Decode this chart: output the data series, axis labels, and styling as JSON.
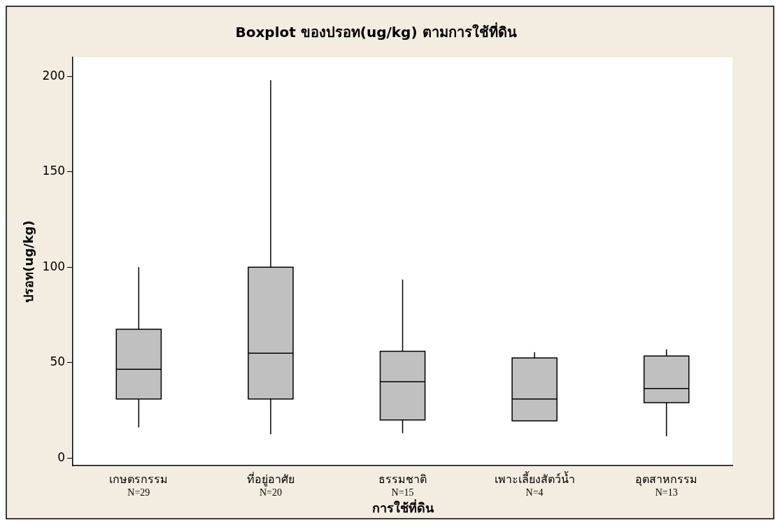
{
  "chart_data": {
    "type": "box",
    "title": "Boxplot ของปรอท(ug/kg) ตามการใช้ที่ดิน",
    "xlabel": "การใช้ที่ดิน",
    "ylabel": "ปรอท(ug/kg)",
    "categories": [
      "เกษตรกรรม",
      "ที่อยู่อาศัย",
      "ธรรมชาติ",
      "เพาะเลี้ยงสัตว์น้ำ",
      "อุตสาหกรรม"
    ],
    "boxes": [
      {
        "low": 16,
        "q1": 31,
        "median": 46.5,
        "q3": 67.5,
        "high": 100
      },
      {
        "low": 12.5,
        "q1": 31,
        "median": 55,
        "q3": 100,
        "high": 198
      },
      {
        "low": 13,
        "q1": 20,
        "median": 40,
        "q3": 56,
        "high": 93.5
      },
      {
        "low": 19.5,
        "q1": 19.5,
        "median": 31,
        "q3": 52.5,
        "high": 55.5
      },
      {
        "low": 11.5,
        "q1": 29,
        "median": 36.5,
        "q3": 53.5,
        "high": 57
      }
    ],
    "color": "#c0c0c0",
    "ylim": [
      -4,
      210
    ],
    "yticks": [
      0,
      50,
      100,
      150,
      200
    ],
    "grid": false,
    "legend": false,
    "annotations": [
      "N=29",
      "N=20",
      "N=15",
      "N=4",
      "N=13"
    ]
  }
}
